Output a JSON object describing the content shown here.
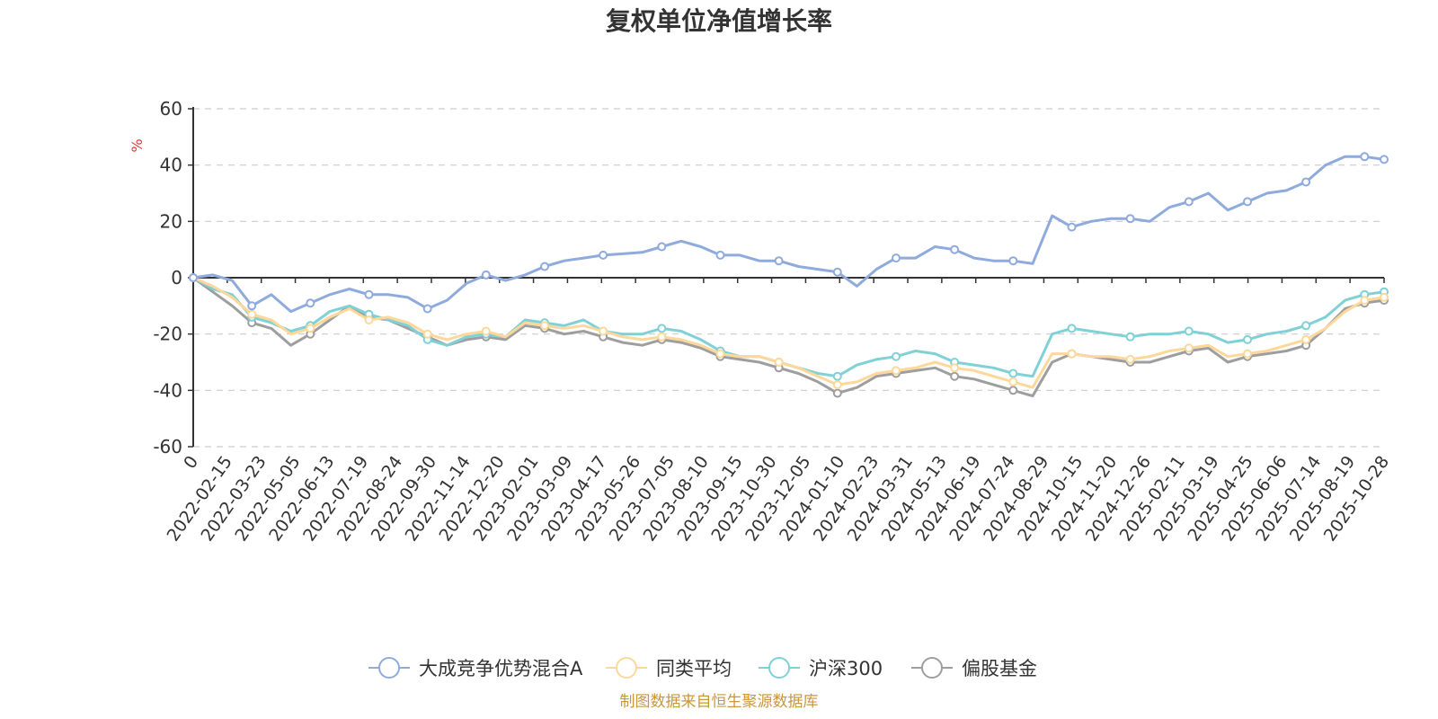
{
  "chart_data": {
    "type": "line",
    "title": "复权单位净值增长率",
    "ylabel": "%",
    "ylim": [
      -60,
      60
    ],
    "yticks": [
      60,
      40,
      20,
      0,
      -20,
      -40,
      -60
    ],
    "x_ticks": [
      "0",
      "2022-02-15",
      "2022-03-23",
      "2022-05-05",
      "2022-06-13",
      "2022-07-19",
      "2022-08-24",
      "2022-09-30",
      "2022-11-14",
      "2022-12-20",
      "2023-02-01",
      "2023-03-09",
      "2023-04-17",
      "2023-05-26",
      "2023-07-05",
      "2023-08-10",
      "2023-09-15",
      "2023-10-30",
      "2023-12-05",
      "2024-01-10",
      "2024-02-23",
      "2024-03-31",
      "2024-05-13",
      "2024-06-19",
      "2024-07-24",
      "2024-08-29",
      "2024-10-15",
      "2024-11-20",
      "2024-12-26",
      "2025-02-11",
      "2025-03-19",
      "2025-04-25",
      "2025-06-06",
      "2025-07-14",
      "2025-08-19",
      "2025-10-28"
    ],
    "series": [
      {
        "name": "大成竞争优势混合A",
        "color": "#8faadc",
        "values": [
          0,
          1,
          -1,
          -10,
          -6,
          -12,
          -9,
          -6,
          -4,
          -6,
          -6,
          -7,
          -11,
          -8,
          -2,
          1,
          -1,
          1,
          4,
          6,
          7,
          8,
          8.5,
          9,
          11,
          13,
          11,
          8,
          8,
          6,
          6,
          4,
          3,
          2,
          -3,
          3,
          7,
          7,
          11,
          10,
          7,
          6,
          6,
          5,
          22,
          18,
          20,
          21,
          21,
          20,
          25,
          27,
          30,
          24,
          27,
          30,
          31,
          34,
          40,
          43,
          43,
          42
        ]
      },
      {
        "name": "同类平均",
        "color": "#fdd89a",
        "values": [
          0,
          -3,
          -7,
          -13,
          -15,
          -20,
          -18,
          -14,
          -11,
          -15,
          -14,
          -16,
          -20,
          -22,
          -20,
          -19,
          -21,
          -16,
          -17,
          -18,
          -17,
          -19,
          -21,
          -22,
          -21,
          -22,
          -24,
          -27,
          -28,
          -28,
          -30,
          -32,
          -35,
          -38,
          -37,
          -34,
          -33,
          -32,
          -30,
          -32,
          -33,
          -35,
          -37,
          -39,
          -27,
          -27,
          -28,
          -28,
          -29,
          -28,
          -26,
          -25,
          -24,
          -28,
          -27,
          -26,
          -24,
          -22,
          -18,
          -12,
          -8,
          -7
        ]
      },
      {
        "name": "沪深300",
        "color": "#7fd1d6",
        "values": [
          0,
          -4,
          -6,
          -14,
          -16,
          -19,
          -17,
          -12,
          -10,
          -13,
          -15,
          -17,
          -22,
          -24,
          -21,
          -20,
          -21,
          -15,
          -16,
          -17,
          -15,
          -19,
          -20,
          -20,
          -18,
          -19,
          -22,
          -26,
          -28,
          -28,
          -30,
          -32,
          -34,
          -35,
          -31,
          -29,
          -28,
          -26,
          -27,
          -30,
          -31,
          -32,
          -34,
          -35,
          -20,
          -18,
          -19,
          -20,
          -21,
          -20,
          -20,
          -19,
          -20,
          -23,
          -22,
          -20,
          -19,
          -17,
          -14,
          -8,
          -6,
          -5
        ]
      },
      {
        "name": "偏股基金",
        "color": "#9e9e9e",
        "values": [
          0,
          -5,
          -10,
          -16,
          -18,
          -24,
          -20,
          -15,
          -10,
          -14,
          -15,
          -18,
          -21,
          -24,
          -22,
          -21,
          -22,
          -17,
          -18,
          -20,
          -19,
          -21,
          -23,
          -24,
          -22,
          -23,
          -25,
          -28,
          -29,
          -30,
          -32,
          -34,
          -37,
          -41,
          -39,
          -35,
          -34,
          -33,
          -32,
          -35,
          -36,
          -38,
          -40,
          -42,
          -30,
          -27,
          -28,
          -29,
          -30,
          -30,
          -28,
          -26,
          -25,
          -30,
          -28,
          -27,
          -26,
          -24,
          -18,
          -11,
          -9,
          -8
        ]
      }
    ]
  },
  "source_note": "制图数据来自恒生聚源数据库"
}
